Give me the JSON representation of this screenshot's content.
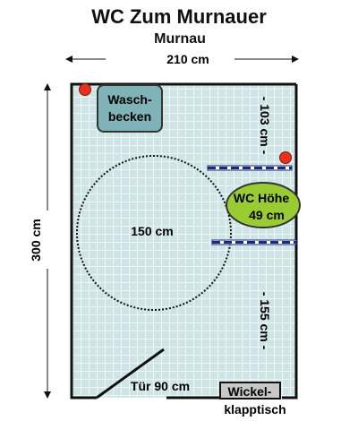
{
  "title": "WC Zum Murnauer",
  "subtitle": "Murnau",
  "dimensions": {
    "width_label": "210 cm",
    "height_label": "300 cm",
    "upper_wall_label": "- 103 cm -",
    "lower_wall_label": "- 155 cm -"
  },
  "fixtures": {
    "sink_line1": "Wasch-",
    "sink_line2": "becken",
    "wc_line1": "WC Höhe",
    "wc_line2": "49 cm",
    "turning_circle_label": "150 cm",
    "door_label": "Tür 90 cm",
    "changing_table_line1": "Wickel-",
    "changing_table_line2": "klapptisch"
  },
  "colors": {
    "tile_background": "#cfe5e5",
    "tile_grid": "#ffffff",
    "wall": "#111111",
    "sink_fill": "#7fb3b8",
    "wc_fill": "#99cc33",
    "grab_bar": "#1a2a7a",
    "marker_red": "#e8321e",
    "changing_table_fill": "#c8c8c8"
  }
}
